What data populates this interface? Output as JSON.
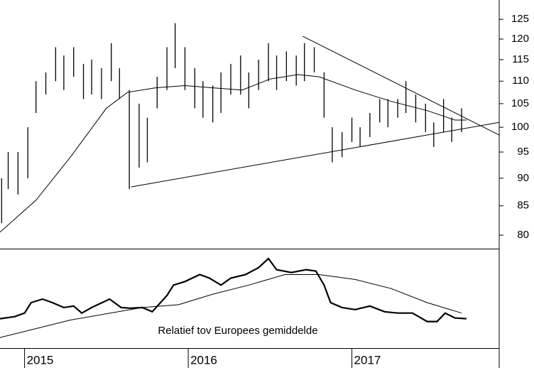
{
  "chart_data": {
    "type": "ohlc",
    "log": true,
    "color": "#000000",
    "xlim": [
      2014.85,
      2017.9
    ],
    "xticks": [
      {
        "value": 2015,
        "label": "2015"
      },
      {
        "value": 2016,
        "label": "2016"
      },
      {
        "value": 2017,
        "label": "2017"
      }
    ],
    "ylim": [
      77.8,
      130.1
    ],
    "yticks": [
      80,
      85,
      90,
      95,
      100,
      105,
      110,
      115,
      120,
      125
    ],
    "bars": {
      "x": [
        2014.86,
        2014.9,
        2014.96,
        2015.02,
        2015.07,
        2015.13,
        2015.19,
        2015.24,
        2015.3,
        2015.36,
        2015.41,
        2015.47,
        2015.53,
        2015.58,
        2015.64,
        2015.7,
        2015.75,
        2015.81,
        2015.87,
        2015.92,
        2015.98,
        2016.04,
        2016.09,
        2016.15,
        2016.2,
        2016.26,
        2016.32,
        2016.37,
        2016.43,
        2016.49,
        2016.54,
        2016.6,
        2016.66,
        2016.71,
        2016.77,
        2016.83,
        2016.88,
        2016.94,
        2017.0,
        2017.05,
        2017.11,
        2017.17,
        2017.22,
        2017.28,
        2017.33,
        2017.39,
        2017.45,
        2017.5,
        2017.56,
        2017.61,
        2017.67
      ],
      "high": [
        90,
        95,
        95,
        100,
        110,
        112,
        118,
        116,
        118,
        114,
        115,
        113,
        119,
        113,
        108,
        105,
        102,
        111,
        118,
        124,
        118,
        113,
        110,
        109,
        112,
        114,
        116,
        112,
        115,
        119,
        116,
        117,
        116,
        119,
        118,
        112,
        100,
        99,
        102,
        100,
        103,
        106,
        106,
        106,
        110,
        107,
        105,
        101,
        106,
        102,
        104
      ],
      "low": [
        82,
        88,
        87,
        90,
        103,
        107,
        110,
        108,
        111,
        106,
        107,
        106,
        110,
        106,
        88,
        92,
        93,
        104,
        108,
        113,
        108,
        104,
        102,
        101,
        103,
        107,
        107,
        104,
        108,
        110,
        108,
        110,
        109,
        110,
        112,
        102,
        93,
        94,
        97,
        96,
        98,
        101,
        100,
        102,
        103,
        101,
        99,
        96,
        99,
        97,
        99
      ]
    },
    "overlays": [
      {
        "x": [
          2014.85,
          2015.07,
          2015.28,
          2015.5,
          2015.63,
          2015.8,
          2015.98,
          2016.15,
          2016.33,
          2016.5,
          2016.67,
          2016.8,
          2017.02,
          2017.24,
          2017.46,
          2017.63,
          2017.7
        ],
        "values": [
          80.5,
          86,
          94,
          104,
          107.5,
          108.5,
          109,
          108.5,
          108,
          110.5,
          111.5,
          111,
          108,
          105.5,
          103.5,
          101.5,
          101.5
        ]
      }
    ],
    "trendlines": [
      {
        "x": [
          2016.7,
          2017.9
        ],
        "values": [
          120.7,
          98.4
        ]
      },
      {
        "x": [
          2015.65,
          2017.9
        ],
        "values": [
          88.4,
          101.0
        ]
      }
    ],
    "lower_panel": {
      "annotation": "Relatief tov Europees gemiddelde",
      "ylim": [
        0,
        100
      ],
      "lines": [
        {
          "width": 2.2,
          "x": [
            2014.85,
            2014.94,
            2015.0,
            2015.04,
            2015.11,
            2015.17,
            2015.24,
            2015.3,
            2015.35,
            2015.41,
            2015.52,
            2015.59,
            2015.65,
            2015.72,
            2015.78,
            2015.87,
            2015.91,
            2015.98,
            2016.07,
            2016.13,
            2016.2,
            2016.26,
            2016.35,
            2016.43,
            2016.49,
            2016.54,
            2016.63,
            2016.72,
            2016.78,
            2016.83,
            2016.87,
            2016.94,
            2017.02,
            2017.11,
            2017.2,
            2017.28,
            2017.37,
            2017.46,
            2017.52,
            2017.57,
            2017.63,
            2017.7
          ],
          "values": [
            30,
            32.1,
            35.7,
            46.4,
            50,
            46.4,
            41.4,
            42.9,
            35.7,
            41.4,
            50,
            41.4,
            40.7,
            41.4,
            37.1,
            53.6,
            64.3,
            67.9,
            75,
            71.4,
            64.3,
            71.4,
            75,
            82.1,
            91.4,
            80,
            77.1,
            80,
            78.6,
            64.3,
            46.4,
            41.4,
            39.3,
            42.9,
            37.1,
            35.7,
            35.7,
            27.1,
            27.1,
            35.7,
            30.7,
            30
          ]
        },
        {
          "width": 1,
          "x": [
            2014.85,
            2015.28,
            2015.72,
            2015.94,
            2016.15,
            2016.37,
            2016.59,
            2016.8,
            2017.02,
            2017.24,
            2017.46,
            2017.67
          ],
          "values": [
            10.7,
            28.6,
            41.4,
            44.3,
            55,
            64.3,
            75,
            75,
            70,
            60.7,
            46.4,
            35.7
          ]
        }
      ]
    }
  }
}
